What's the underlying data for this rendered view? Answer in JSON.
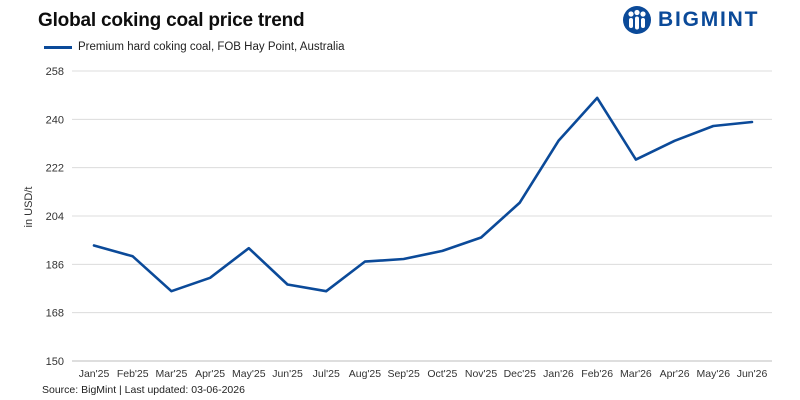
{
  "header": {
    "title": "Global coking coal price trend",
    "brand": "BIGMINT",
    "brand_color": "#0b4a99"
  },
  "footer": {
    "source": "Source: BigMint | Last updated: 03-06-2026"
  },
  "chart_data": {
    "type": "line",
    "title": "Global coking coal price trend",
    "xlabel": "",
    "ylabel": "in USD/t",
    "legend_position": "top-left",
    "grid": true,
    "ylim": [
      150,
      258
    ],
    "yticks": [
      150,
      168,
      186,
      204,
      222,
      240,
      258
    ],
    "categories": [
      "Jan'25",
      "Feb'25",
      "Mar'25",
      "Apr'25",
      "May'25",
      "Jun'25",
      "Jul'25",
      "Aug'25",
      "Sep'25",
      "Oct'25",
      "Nov'25",
      "Dec'25",
      "Jan'26",
      "Feb'26",
      "Mar'26",
      "Apr'26",
      "May'26",
      "Jun'26"
    ],
    "series": [
      {
        "name": "Premium hard coking coal, FOB Hay Point, Australia",
        "color": "#0b4a99",
        "values": [
          193,
          189,
          176,
          181,
          192,
          178.5,
          176,
          187,
          188,
          191,
          196,
          209,
          232,
          248,
          225,
          232,
          237.5,
          239
        ]
      }
    ]
  }
}
